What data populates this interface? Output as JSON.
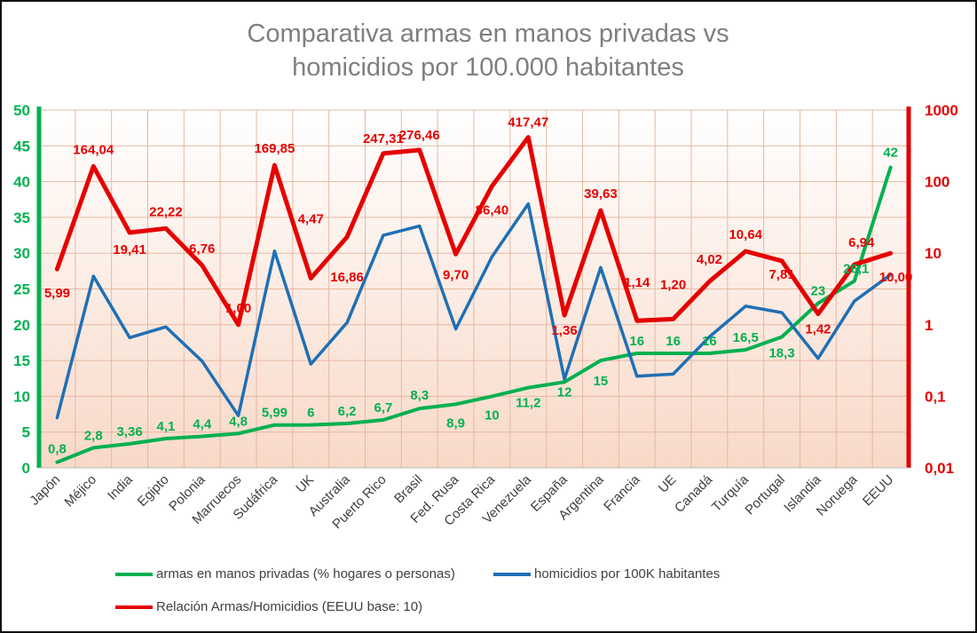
{
  "chart_data": {
    "type": "line",
    "title_line1": "Comparativa armas en manos privadas vs",
    "title_line2": "homicidios por 100.000 habitantes",
    "categories": [
      "Japón",
      "Méjico",
      "India",
      "Egipto",
      "Polonia",
      "Marruecos",
      "Sudáfrica",
      "UK",
      "Australia",
      "Puerto Rico",
      "Brasil",
      "Fed. Rusa",
      "Costa Rica",
      "Venezuela",
      "España",
      "Argentina",
      "Francia",
      "UE",
      "Canadá",
      "Turquía",
      "Portugal",
      "Islandia",
      "Noruega",
      "EEUU"
    ],
    "left_axis": {
      "min": 0,
      "max": 50,
      "step": 5,
      "ticks": [
        "0",
        "5",
        "10",
        "15",
        "20",
        "25",
        "30",
        "35",
        "40",
        "45",
        "50"
      ],
      "color": "#00b050"
    },
    "right_axis": {
      "scale": "log",
      "min": 0.01,
      "max": 1000,
      "ticks": [
        "0,01",
        "0,1",
        "1",
        "10",
        "100",
        "1000"
      ],
      "color": "#e00000"
    },
    "series": [
      {
        "name": "armas en manos privadas (% hogares o personas)",
        "color": "#00b050",
        "axis": "left",
        "values": [
          0.8,
          2.8,
          3.36,
          4.1,
          4.4,
          4.8,
          5.99,
          6,
          6.2,
          6.7,
          8.3,
          8.9,
          10,
          11.2,
          12,
          15,
          16,
          16,
          16,
          16.5,
          18.3,
          23,
          26.1,
          42
        ],
        "labels": [
          "0,8",
          "2,8",
          "3,36",
          "4,1",
          "4,4",
          "4,8",
          "5,99",
          "6",
          "6,2",
          "6,7",
          "8,3",
          "8,9",
          "10",
          "11,2",
          "12",
          "15",
          "16",
          "16",
          "16",
          "16,5",
          "18,3",
          "23",
          "26,1",
          "42"
        ]
      },
      {
        "name": "homicidios por 100K habitantes",
        "color": "#1f6fb5",
        "axis": "left",
        "values": [
          7,
          26.8,
          18.2,
          19.7,
          14.9,
          7.3,
          30.3,
          14.5,
          20.3,
          32.5,
          33.8,
          19.4,
          29.5,
          36.9,
          12.4,
          28,
          12.8,
          13.1,
          18.3,
          22.6,
          21.7,
          15.3,
          23.3,
          27
        ]
      },
      {
        "name": "Relación Armas/Homicidios (EEUU base: 10)",
        "color": "#e60000",
        "axis": "right",
        "values": [
          5.99,
          164.04,
          19.41,
          22.22,
          6.76,
          1.0,
          169.85,
          4.47,
          16.86,
          247.31,
          276.46,
          9.7,
          86.4,
          417.47,
          1.36,
          39.63,
          1.14,
          1.2,
          4.02,
          10.64,
          7.81,
          1.42,
          6.94,
          10.0
        ],
        "labels": [
          "5,99",
          "164,04",
          "19,41",
          "22,22",
          "6,76",
          "1,00",
          "169,85",
          "4,47",
          "16,86",
          "247,31",
          "276,46",
          "9,70",
          "86,40",
          "417,47",
          "1,36",
          "39,63",
          "1,14",
          "1,20",
          "4,02",
          "10,64",
          "7,81",
          "1,42",
          "6,94",
          "10,00"
        ]
      }
    ],
    "legend": [
      "armas en manos privadas (% hogares o personas)",
      "homicidios por 100K habitantes",
      "Relación Armas/Homicidios (EEUU base: 10)"
    ]
  }
}
